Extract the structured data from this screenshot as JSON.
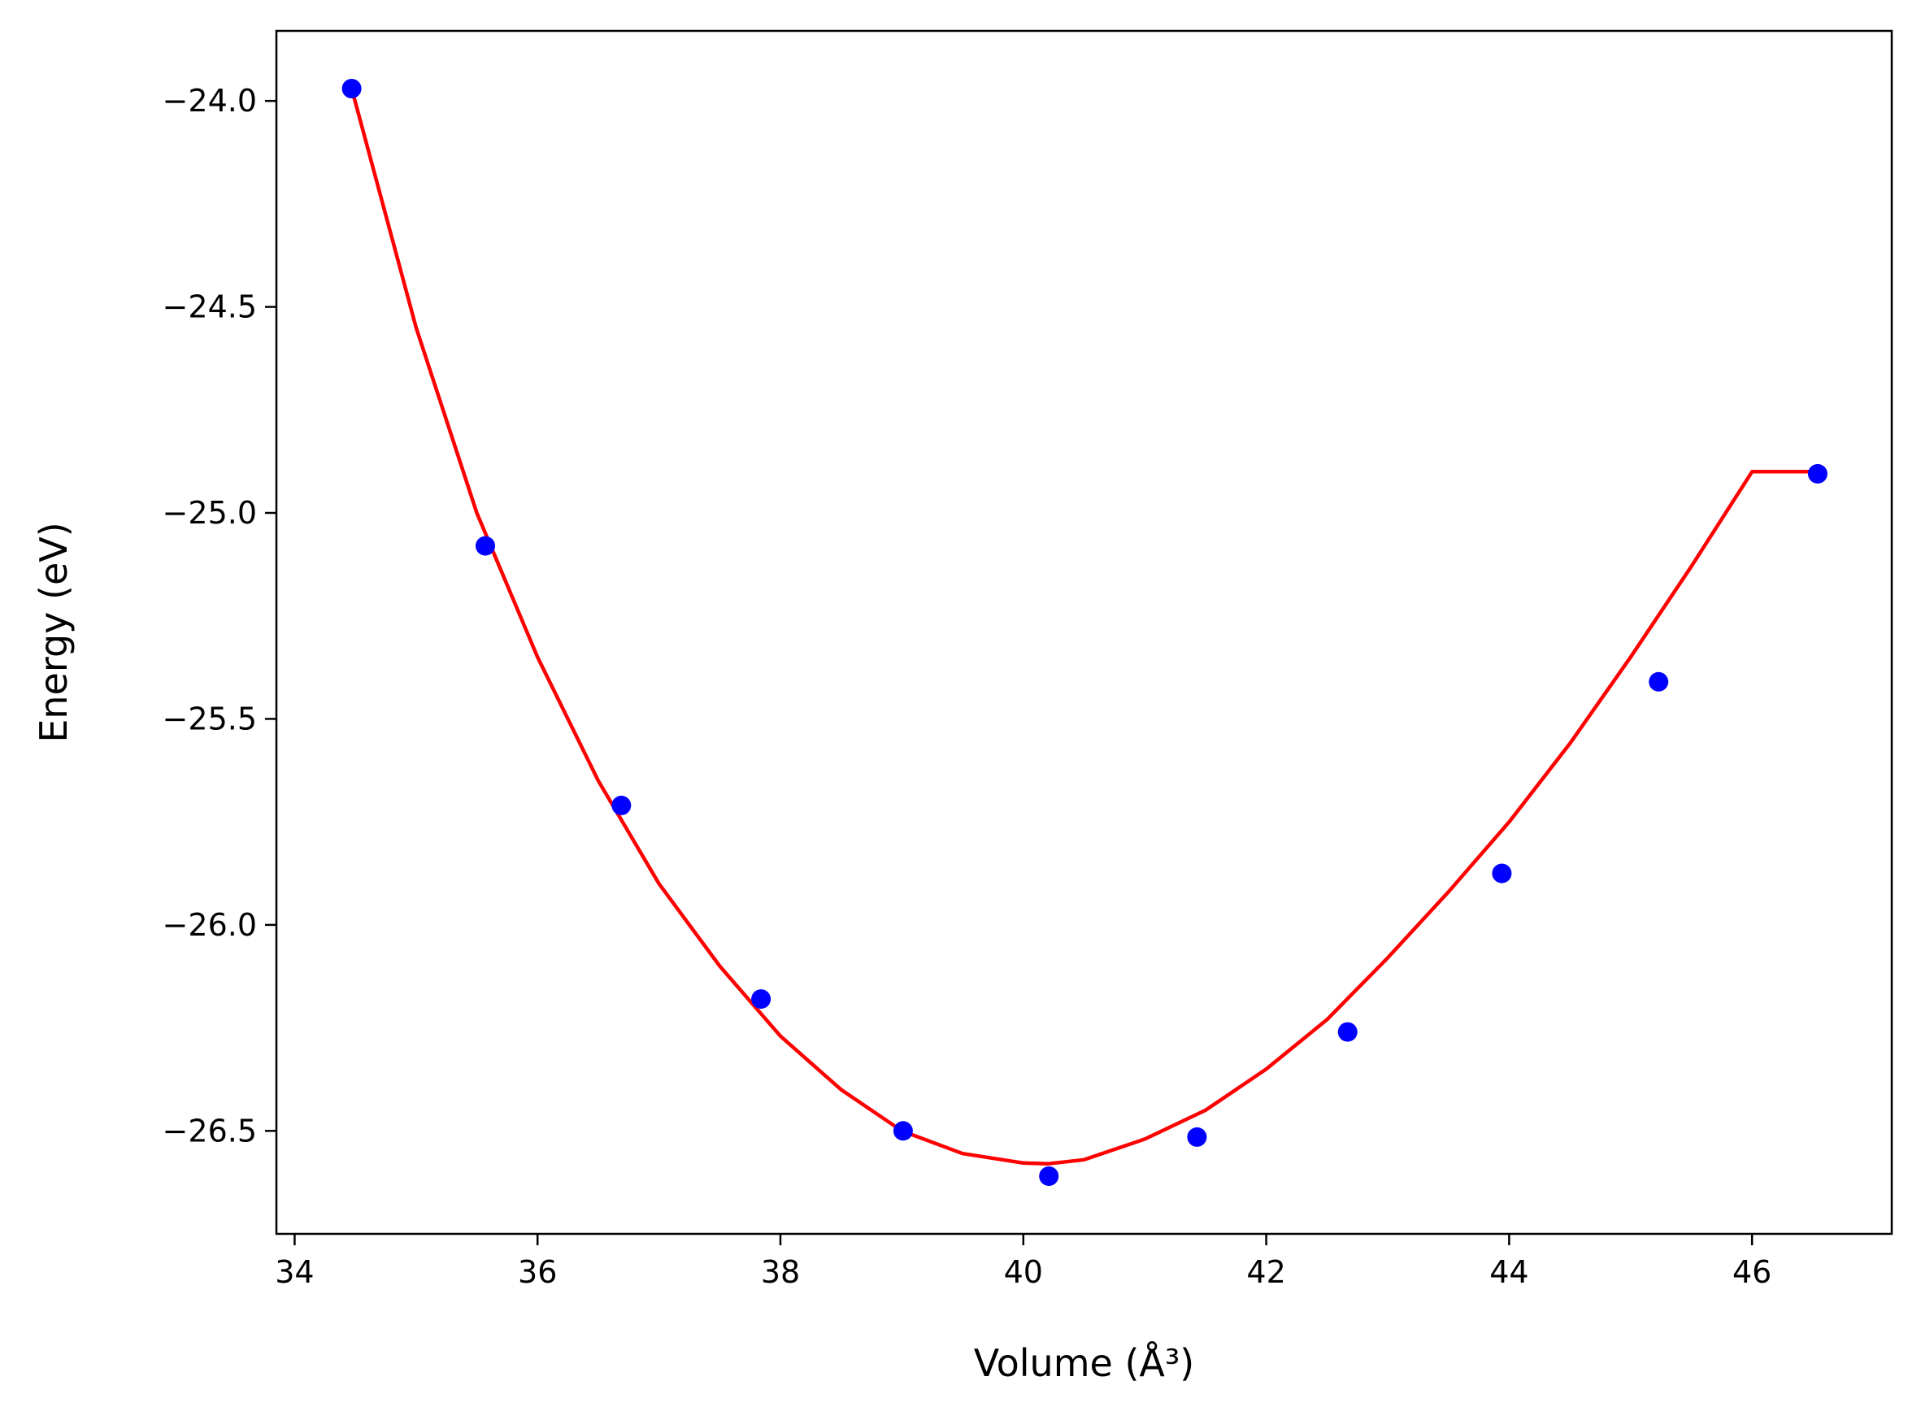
{
  "chart_data": {
    "type": "scatter",
    "title": "",
    "xlabel": "Volume (Å³)",
    "ylabel": "Energy (eV)",
    "xlim": [
      33.85,
      47.15
    ],
    "ylim": [
      -26.75,
      -23.83
    ],
    "x_ticks": [
      34,
      36,
      38,
      40,
      42,
      44,
      46
    ],
    "y_ticks": [
      -24.0,
      -24.5,
      -25.0,
      -25.5,
      -26.0,
      -26.5
    ],
    "x_tick_labels": [
      "34",
      "36",
      "38",
      "40",
      "42",
      "44",
      "46"
    ],
    "y_tick_labels": [
      "−24.0",
      "−24.5",
      "−25.0",
      "−25.5",
      "−26.0",
      "−26.5"
    ],
    "grid": false,
    "series": [
      {
        "kind": "points",
        "color": "#0000ff",
        "x": [
          34.47,
          35.57,
          36.69,
          37.84,
          39.01,
          40.21,
          41.43,
          42.67,
          43.94,
          45.23,
          46.54
        ],
        "y": [
          -23.97,
          -25.08,
          -25.71,
          -26.18,
          -26.5,
          -26.61,
          -26.515,
          -26.26,
          -25.875,
          -25.41,
          -24.905
        ]
      },
      {
        "kind": "fit-curve",
        "color": "#ff0000",
        "x": [
          34.47,
          35.0,
          35.5,
          36.0,
          36.5,
          37.0,
          37.5,
          38.0,
          38.5,
          39.0,
          39.5,
          40.0,
          40.2,
          40.5,
          41.0,
          41.5,
          42.0,
          42.5,
          43.0,
          43.5,
          44.0,
          44.5,
          45.0,
          45.5,
          46.0,
          46.54
        ],
        "y": [
          -23.97,
          -24.55,
          -25.0,
          -25.35,
          -25.65,
          -25.9,
          -26.1,
          -26.27,
          -26.4,
          -26.5,
          -26.555,
          -26.578,
          -26.58,
          -26.57,
          -26.52,
          -26.45,
          -26.35,
          -26.23,
          -26.08,
          -25.92,
          -25.75,
          -25.56,
          -25.35,
          -25.13,
          -24.9,
          -24.9
        ]
      }
    ]
  },
  "colors": {
    "points": "#0000ff",
    "fit": "#ff0000",
    "axes": "#000000",
    "background": "#ffffff"
  }
}
